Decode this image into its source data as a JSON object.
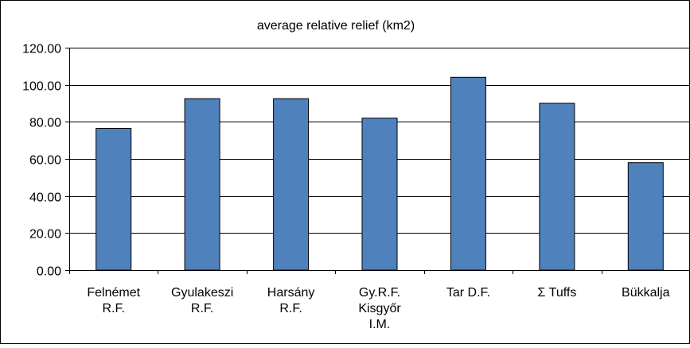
{
  "chart_data": {
    "type": "bar",
    "title": "average relative relief (km2)",
    "xlabel": "",
    "ylabel": "",
    "ylim": [
      0,
      120
    ],
    "yticks": [
      "0.00",
      "20.00",
      "40.00",
      "60.00",
      "80.00",
      "100.00",
      "120.00"
    ],
    "ytick_values": [
      0,
      20,
      40,
      60,
      80,
      100,
      120
    ],
    "grid": true,
    "legend": "none",
    "categories": [
      [
        "Felnémet",
        "R.F."
      ],
      [
        "Gyulakeszi",
        "R.F."
      ],
      [
        "Harsány",
        "R.F."
      ],
      [
        "Gy.R.F.",
        "Kisgyőr",
        "I.M."
      ],
      [
        "Tar D.F."
      ],
      [
        "Σ Tuffs"
      ],
      [
        "Bükkalja"
      ]
    ],
    "series": [
      {
        "values": [
          76.5,
          92.5,
          92.5,
          82.0,
          104.0,
          90.0,
          58.0
        ]
      }
    ],
    "colors": {
      "bar_fill": "#4f81bd",
      "bar_stroke": "#000000",
      "grid": "#000000",
      "background": "#ffffff"
    }
  }
}
